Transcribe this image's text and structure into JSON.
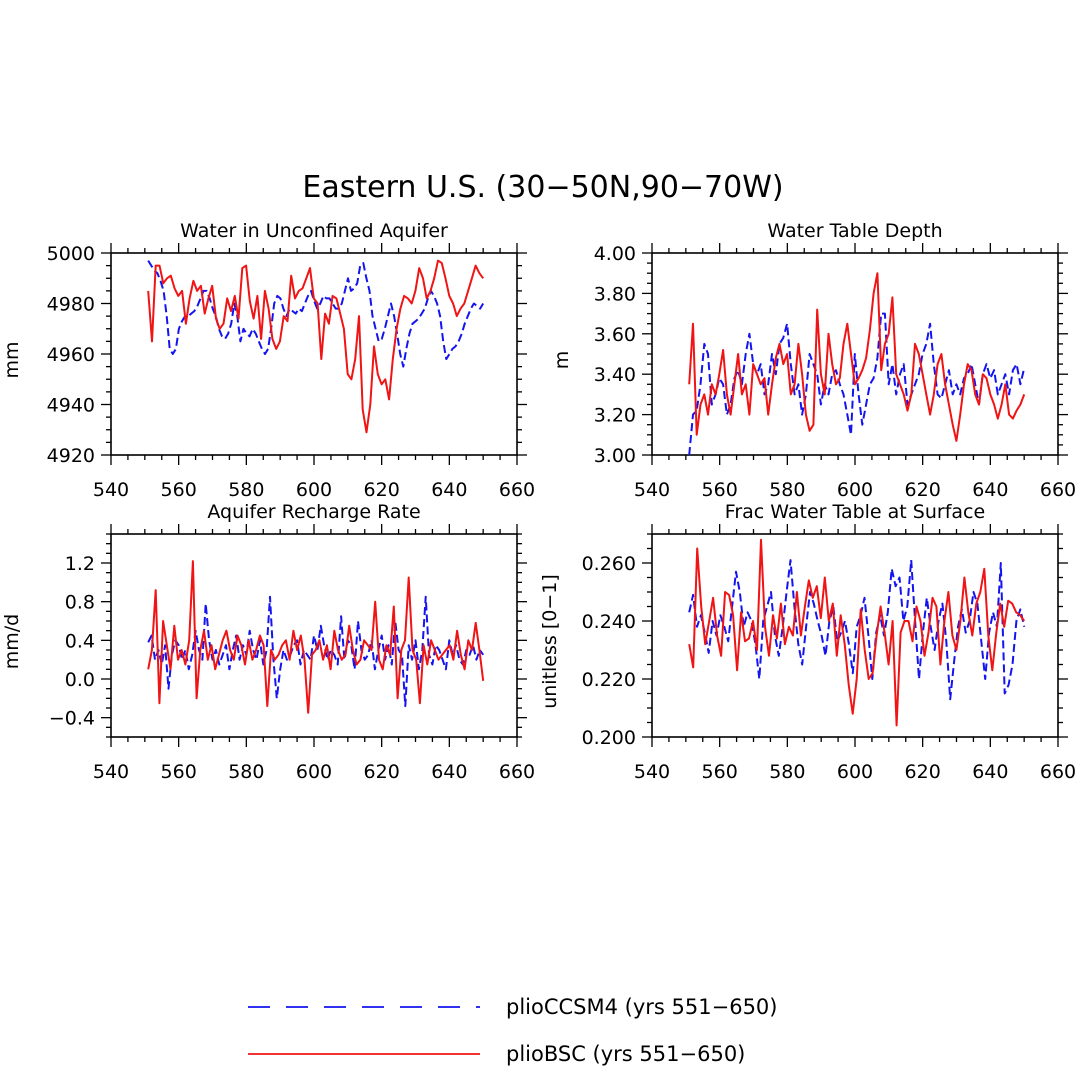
{
  "figure_title": "Eastern U.S. (30−50N,90−70W)",
  "colors": {
    "pliocesm": "#1414f0",
    "pliobsc": "#f01414"
  },
  "legend": [
    {
      "label": "plioCCSM4 (yrs 551−650)",
      "style": "dashed",
      "color": "#1414f0"
    },
    {
      "label": "plioBSC (yrs 551−650)",
      "style": "solid",
      "color": "#f01414"
    }
  ],
  "chart_data": [
    {
      "type": "line",
      "title": "Water in Unconfined Aquifer",
      "xlabel": "",
      "ylabel": "mm",
      "xlim": [
        540,
        660
      ],
      "ylim": [
        4920,
        5000
      ],
      "xticks": [
        540,
        560,
        580,
        600,
        620,
        640,
        660
      ],
      "yticks": [
        4920,
        4940,
        4960,
        4980,
        5000
      ],
      "ytick_labels": [
        "4920",
        "4940",
        "4960",
        "4980",
        "5000"
      ],
      "x_start": 551,
      "x_end": 650,
      "series": [
        {
          "name": "plioCCSM4 (yrs 551−650)",
          "style": "dashed",
          "values": [
            4997,
            4995,
            4993,
            4992,
            4989,
            4985,
            4975,
            4962,
            4960,
            4962,
            4970,
            4973,
            4975,
            4975,
            4976,
            4977,
            4979,
            4982,
            4985,
            4985,
            4982,
            4978,
            4975,
            4970,
            4967,
            4966,
            4968,
            4972,
            4980,
            4975,
            4965,
            4970,
            4968,
            4967,
            4970,
            4968,
            4965,
            4962,
            4960,
            4962,
            4970,
            4980,
            4983,
            4982,
            4978,
            4975,
            4978,
            4977,
            4976,
            4978,
            4977,
            4980,
            4983,
            4985,
            4981,
            4978,
            4980,
            4983,
            4982,
            4982,
            4980,
            4978,
            4978,
            4980,
            4985,
            4990,
            4985,
            4986,
            4988,
            4995,
            4996,
            4990,
            4985,
            4975,
            4970,
            4965,
            4966,
            4970,
            4975,
            4980,
            4975,
            4968,
            4960,
            4955,
            4962,
            4968,
            4972,
            4973,
            4974,
            4976,
            4978,
            4982,
            4985,
            4983,
            4980,
            4975,
            4965,
            4958,
            4960,
            4962,
            4963,
            4965,
            4968,
            4972,
            4975,
            4978,
            4980,
            4979,
            4978,
            4980
          ]
        },
        {
          "name": "plioBSC (yrs 551−650)",
          "style": "solid",
          "values": [
            4985,
            4965,
            4995,
            4995,
            4988,
            4990,
            4991,
            4986,
            4983,
            4985,
            4972,
            4982,
            4989,
            4985,
            4987,
            4976,
            4982,
            4987,
            4974,
            4970,
            4972,
            4982,
            4977,
            4983,
            4974,
            4994,
            4995,
            4981,
            4974,
            4983,
            4966,
            4985,
            4978,
            4966,
            4962,
            4965,
            4975,
            4973,
            4991,
            4982,
            4985,
            4986,
            4990,
            4994,
            4982,
            4980,
            4958,
            4976,
            4972,
            4983,
            4982,
            4976,
            4970,
            4952,
            4950,
            4958,
            4975,
            4938,
            4929,
            4940,
            4963,
            4952,
            4948,
            4950,
            4942,
            4958,
            4970,
            4978,
            4983,
            4982,
            4980,
            4985,
            4994,
            4990,
            4982,
            4985,
            4990,
            4997,
            4996,
            4990,
            4983,
            4980,
            4975,
            4978,
            4980,
            4985,
            4990,
            4995,
            4992,
            4990
          ]
        }
      ]
    },
    {
      "type": "line",
      "title": "Water Table Depth",
      "xlabel": "",
      "ylabel": "m",
      "xlim": [
        540,
        660
      ],
      "ylim": [
        3.0,
        4.0
      ],
      "xticks": [
        540,
        560,
        580,
        600,
        620,
        640,
        660
      ],
      "yticks": [
        3.0,
        3.2,
        3.4,
        3.6,
        3.8,
        4.0
      ],
      "ytick_labels": [
        "3.00",
        "3.20",
        "3.40",
        "3.60",
        "3.80",
        "4.00"
      ],
      "x_start": 551,
      "x_end": 650,
      "series": [
        {
          "name": "plioCCSM4 (yrs 551−650)",
          "style": "dashed",
          "values": [
            3.0,
            3.2,
            3.22,
            3.35,
            3.55,
            3.5,
            3.25,
            3.3,
            3.38,
            3.35,
            3.2,
            3.25,
            3.38,
            3.42,
            3.35,
            3.5,
            3.6,
            3.45,
            3.4,
            3.45,
            3.3,
            3.35,
            3.5,
            3.4,
            3.55,
            3.58,
            3.65,
            3.45,
            3.3,
            3.35,
            3.2,
            3.3,
            3.5,
            3.45,
            3.4,
            3.25,
            3.35,
            3.3,
            3.4,
            3.42,
            3.35,
            3.3,
            3.2,
            3.1,
            3.5,
            3.3,
            3.15,
            3.25,
            3.35,
            3.38,
            3.48,
            3.7,
            3.7,
            3.35,
            3.45,
            3.3,
            3.4,
            3.45,
            3.25,
            3.3,
            3.35,
            3.4,
            3.5,
            3.55,
            3.65,
            3.45,
            3.3,
            3.28,
            3.35,
            3.42,
            3.3,
            3.35,
            3.3,
            3.38,
            3.4,
            3.45,
            3.35,
            3.25,
            3.4,
            3.45,
            3.38,
            3.42,
            3.3,
            3.35,
            3.4,
            3.3,
            3.42,
            3.45,
            3.35,
            3.43
          ]
        },
        {
          "name": "plioBSC (yrs 551−650)",
          "style": "solid",
          "values": [
            3.35,
            3.65,
            3.1,
            3.25,
            3.3,
            3.2,
            3.35,
            3.3,
            3.4,
            3.52,
            3.3,
            3.2,
            3.35,
            3.5,
            3.3,
            3.35,
            3.2,
            3.45,
            3.4,
            3.35,
            3.38,
            3.2,
            3.35,
            3.48,
            3.55,
            3.45,
            3.5,
            3.3,
            3.35,
            3.55,
            3.4,
            3.2,
            3.12,
            3.15,
            3.72,
            3.4,
            3.3,
            3.6,
            3.45,
            3.35,
            3.38,
            3.55,
            3.65,
            3.5,
            3.35,
            3.38,
            3.42,
            3.48,
            3.62,
            3.8,
            3.9,
            3.42,
            3.55,
            3.6,
            3.78,
            3.4,
            3.35,
            3.3,
            3.22,
            3.3,
            3.55,
            3.5,
            3.4,
            3.3,
            3.2,
            3.3,
            3.45,
            3.5,
            3.35,
            3.25,
            3.15,
            3.07,
            3.2,
            3.35,
            3.45,
            3.42,
            3.3,
            3.25,
            3.4,
            3.38,
            3.3,
            3.25,
            3.18,
            3.25,
            3.35,
            3.2,
            3.18,
            3.22,
            3.25,
            3.3
          ]
        }
      ]
    },
    {
      "type": "line",
      "title": "Aquifer Recharge Rate",
      "xlabel": "",
      "ylabel": "mm/d",
      "xlim": [
        540,
        660
      ],
      "ylim": [
        -0.6,
        1.5
      ],
      "xticks": [
        540,
        560,
        580,
        600,
        620,
        640,
        660
      ],
      "yticks": [
        -0.4,
        0.0,
        0.4,
        0.8,
        1.2
      ],
      "ytick_labels": [
        "−0.4",
        "0.0",
        "0.4",
        "0.8",
        "1.2"
      ],
      "x_start": 551,
      "x_end": 650,
      "series": [
        {
          "name": "plioCCSM4 (yrs 551−650)",
          "style": "dashed",
          "values": [
            0.38,
            0.45,
            0.2,
            0.3,
            0.15,
            0.35,
            -0.1,
            0.25,
            0.4,
            0.35,
            0.2,
            0.3,
            0.1,
            0.25,
            0.5,
            0.3,
            0.2,
            0.78,
            0.4,
            0.2,
            0.3,
            0.15,
            0.25,
            0.35,
            0.1,
            0.3,
            0.45,
            0.2,
            0.35,
            0.25,
            0.5,
            0.3,
            0.2,
            0.4,
            0.15,
            0.3,
            0.85,
            0.2,
            -0.2,
            0.1,
            0.3,
            0.2,
            0.25,
            0.35,
            0.4,
            0.15,
            0.3,
            0.25,
            0.2,
            0.45,
            0.3,
            0.55,
            0.35,
            0.2,
            0.3,
            0.25,
            0.15,
            0.65,
            0.2,
            0.4,
            0.35,
            0.1,
            0.6,
            0.3,
            0.2,
            0.25,
            0.4,
            0.1,
            0.3,
            0.45,
            0.2,
            0.35,
            0.15,
            0.6,
            0.3,
            0.25,
            -0.28,
            0.35,
            0.2,
            0.4,
            0.1,
            0.3,
            0.85,
            0.25,
            0.15,
            0.35,
            0.3,
            0.2,
            0.1,
            0.4,
            0.25,
            0.35,
            0.2,
            0.15,
            0.3,
            0.25,
            0.35,
            0.2,
            0.3,
            0.25
          ]
        },
        {
          "name": "plioBSC (yrs 551−650)",
          "style": "solid",
          "values": [
            0.1,
            0.3,
            0.92,
            -0.25,
            0.6,
            0.35,
            0.1,
            0.55,
            0.2,
            0.3,
            0.15,
            0.4,
            1.22,
            -0.2,
            0.3,
            0.5,
            0.2,
            0.35,
            0.1,
            0.25,
            0.4,
            0.5,
            0.3,
            0.2,
            0.45,
            0.35,
            0.15,
            0.4,
            0.2,
            0.3,
            0.45,
            0.35,
            -0.28,
            0.3,
            0.2,
            0.25,
            0.35,
            0.4,
            0.2,
            0.5,
            0.3,
            0.45,
            0.2,
            -0.35,
            0.25,
            0.3,
            0.4,
            0.2,
            0.35,
            0.1,
            0.5,
            0.3,
            0.2,
            0.25,
            0.55,
            0.3,
            0.15,
            0.2,
            0.4,
            0.35,
            0.3,
            0.8,
            0.2,
            0.1,
            0.35,
            0.25,
            0.75,
            -0.2,
            0.3,
            0.4,
            1.05,
            0.3,
            0.2,
            -0.25,
            0.35,
            0.15,
            0.4,
            0.3,
            0.2,
            0.25,
            0.3,
            0.35,
            0.2,
            0.5,
            0.25,
            0.1,
            0.4,
            0.3,
            0.58,
            0.3,
            -0.02
          ]
        }
      ]
    },
    {
      "type": "line",
      "title": "Frac Water Table at Surface",
      "xlabel": "",
      "ylabel": "unitless [0−1]",
      "xlim": [
        540,
        660
      ],
      "ylim": [
        0.2,
        0.27
      ],
      "xticks": [
        540,
        560,
        580,
        600,
        620,
        640,
        660
      ],
      "yticks": [
        0.2,
        0.22,
        0.24,
        0.26
      ],
      "ytick_labels": [
        "0.200",
        "0.220",
        "0.240",
        "0.260"
      ],
      "x_start": 551,
      "x_end": 650,
      "series": [
        {
          "name": "plioCCSM4 (yrs 551−650)",
          "style": "dashed",
          "values": [
            0.243,
            0.249,
            0.238,
            0.242,
            0.236,
            0.229,
            0.24,
            0.235,
            0.242,
            0.238,
            0.233,
            0.245,
            0.257,
            0.25,
            0.238,
            0.243,
            0.24,
            0.232,
            0.22,
            0.24,
            0.245,
            0.25,
            0.235,
            0.228,
            0.238,
            0.25,
            0.261,
            0.245,
            0.232,
            0.225,
            0.238,
            0.25,
            0.246,
            0.24,
            0.235,
            0.228,
            0.24,
            0.245,
            0.233,
            0.236,
            0.24,
            0.232,
            0.222,
            0.238,
            0.242,
            0.248,
            0.235,
            0.22,
            0.236,
            0.242,
            0.235,
            0.243,
            0.258,
            0.252,
            0.255,
            0.24,
            0.245,
            0.261,
            0.24,
            0.22,
            0.236,
            0.248,
            0.238,
            0.23,
            0.24,
            0.246,
            0.233,
            0.213,
            0.226,
            0.238,
            0.244,
            0.236,
            0.24,
            0.25,
            0.246,
            0.233,
            0.22,
            0.236,
            0.243,
            0.238,
            0.26,
            0.215,
            0.218,
            0.225,
            0.24,
            0.244,
            0.238
          ]
        },
        {
          "name": "plioBSC (yrs 551−650)",
          "style": "solid",
          "values": [
            0.232,
            0.224,
            0.265,
            0.245,
            0.232,
            0.24,
            0.248,
            0.235,
            0.228,
            0.25,
            0.249,
            0.242,
            0.223,
            0.243,
            0.233,
            0.234,
            0.24,
            0.23,
            0.268,
            0.238,
            0.228,
            0.242,
            0.234,
            0.246,
            0.232,
            0.238,
            0.235,
            0.25,
            0.235,
            0.245,
            0.254,
            0.248,
            0.252,
            0.241,
            0.255,
            0.24,
            0.246,
            0.228,
            0.242,
            0.232,
            0.218,
            0.208,
            0.22,
            0.244,
            0.23,
            0.22,
            0.222,
            0.235,
            0.245,
            0.236,
            0.225,
            0.24,
            0.204,
            0.236,
            0.24,
            0.24,
            0.233,
            0.245,
            0.24,
            0.228,
            0.236,
            0.248,
            0.245,
            0.225,
            0.24,
            0.25,
            0.235,
            0.23,
            0.24,
            0.255,
            0.243,
            0.235,
            0.246,
            0.25,
            0.258,
            0.235,
            0.223,
            0.236,
            0.246,
            0.238,
            0.247,
            0.246,
            0.243,
            0.242,
            0.24
          ]
        }
      ]
    }
  ]
}
